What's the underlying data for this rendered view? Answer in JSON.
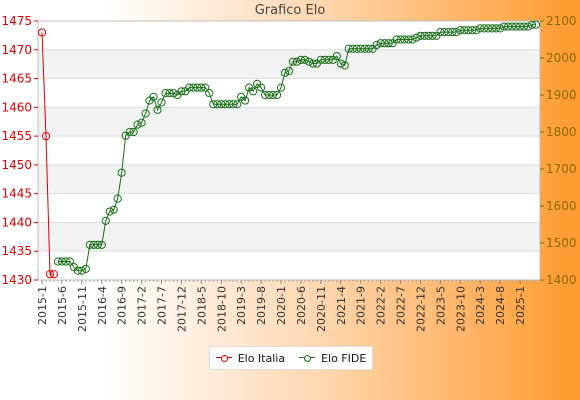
{
  "chart_data": {
    "type": "line",
    "title": "Grafico Elo",
    "x_ticks": [
      "2015-1",
      "2015-6",
      "2015-11",
      "2016-4",
      "2016-9",
      "2017-2",
      "2017-7",
      "2017-12",
      "2018-5",
      "2018-10",
      "2019-3",
      "2019-8",
      "2020-1",
      "2020-6",
      "2020-11",
      "2021-4",
      "2021-9",
      "2022-2",
      "2022-7",
      "2022-12",
      "2023-5",
      "2023-10",
      "2024-3",
      "2024-8",
      "2025-1"
    ],
    "y_left": {
      "label": "",
      "range": [
        1430,
        1475
      ],
      "ticks": [
        1430,
        1435,
        1440,
        1445,
        1450,
        1455,
        1460,
        1465,
        1470,
        1475
      ],
      "color": "#dd0000"
    },
    "y_right": {
      "label": "",
      "range": [
        1400,
        2100
      ],
      "ticks": [
        1400,
        1500,
        1600,
        1700,
        1800,
        1900,
        2000,
        2100
      ],
      "color": "#8a6a00"
    },
    "grid": true,
    "legend_position": "bottom",
    "series": [
      {
        "name": "Elo Italia",
        "color": "#dd0000",
        "axis": "left",
        "x": [
          0,
          1,
          2,
          3
        ],
        "values": [
          1473,
          1455,
          1431,
          1431
        ]
      },
      {
        "name": "Elo FIDE",
        "color": "#1a6e1a",
        "axis": "right",
        "x": [
          4,
          5,
          6,
          7,
          8,
          9,
          10,
          11,
          12,
          13,
          14,
          15,
          16,
          17,
          18,
          19,
          20,
          21,
          22,
          23,
          24,
          25,
          26,
          27,
          28,
          29,
          30,
          31,
          32,
          33,
          34,
          35,
          36,
          37,
          38,
          39,
          40,
          41,
          42,
          43,
          44,
          45,
          46,
          47,
          48,
          49,
          50,
          51,
          52,
          53,
          54,
          55,
          56,
          57,
          58,
          59,
          60,
          61,
          62,
          63,
          64,
          65,
          66,
          67,
          68,
          69,
          70,
          71,
          72,
          73,
          74,
          75,
          76,
          77,
          78,
          79,
          80,
          81,
          82,
          83,
          84,
          85,
          86,
          87,
          88,
          89,
          90,
          91,
          92,
          93,
          94,
          95,
          96,
          97,
          98,
          99,
          100,
          101,
          102,
          103,
          104,
          105,
          106,
          107,
          108,
          109,
          110,
          111,
          112,
          113,
          114,
          115,
          116,
          117,
          118,
          119,
          120,
          121,
          122,
          123,
          124
        ],
        "values": [
          1450,
          1450,
          1450,
          1450,
          1435,
          1425,
          1425,
          1430,
          1495,
          1495,
          1495,
          1495,
          1560,
          1585,
          1590,
          1620,
          1690,
          1790,
          1800,
          1800,
          1820,
          1825,
          1850,
          1885,
          1895,
          1860,
          1880,
          1905,
          1905,
          1905,
          1900,
          1910,
          1910,
          1920,
          1920,
          1920,
          1920,
          1920,
          1905,
          1875,
          1875,
          1875,
          1875,
          1875,
          1875,
          1875,
          1895,
          1885,
          1920,
          1910,
          1930,
          1920,
          1900,
          1900,
          1900,
          1900,
          1920,
          1960,
          1965,
          1990,
          1990,
          1995,
          1995,
          1990,
          1985,
          1985,
          1995,
          1995,
          1995,
          1995,
          2005,
          1985,
          1980,
          2025,
          2025,
          2025,
          2025,
          2025,
          2025,
          2025,
          2035,
          2040,
          2040,
          2040,
          2040,
          2050,
          2050,
          2050,
          2050,
          2050,
          2055,
          2060,
          2060,
          2060,
          2060,
          2060,
          2070,
          2070,
          2070,
          2070,
          2070,
          2075,
          2075,
          2075,
          2075,
          2075,
          2080,
          2080,
          2080,
          2080,
          2080,
          2080,
          2085,
          2085,
          2085,
          2085,
          2085,
          2085,
          2085,
          2090,
          2090
        ]
      }
    ]
  },
  "legend": {
    "items": [
      "Elo Italia",
      "Elo FIDE"
    ]
  }
}
